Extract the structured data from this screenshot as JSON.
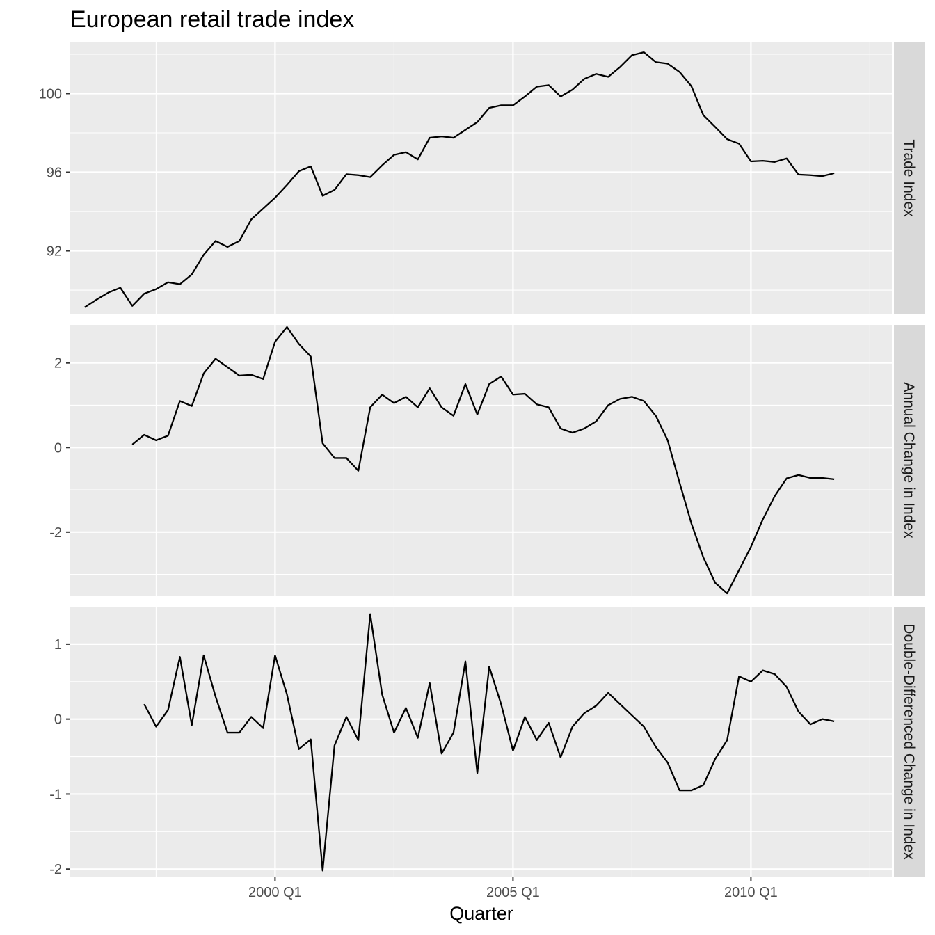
{
  "chart_data": {
    "type": "line",
    "title": "European retail trade index",
    "xlabel": "Quarter",
    "x_ticks": [
      "2000 Q1",
      "2005 Q1",
      "2010 Q1"
    ],
    "x_start": "1996 Q1",
    "grid": true,
    "facets": [
      {
        "name": "Trade Index",
        "ylim": [
          88.8,
          102.6
        ],
        "y_ticks": [
          {
            "value": 92,
            "label": "92"
          },
          {
            "value": 96,
            "label": "96"
          },
          {
            "value": 100,
            "label": "100"
          }
        ],
        "first_quarter": "1996 Q1",
        "values": [
          89.13,
          89.52,
          89.88,
          90.12,
          89.2,
          89.82,
          90.05,
          90.4,
          90.3,
          90.8,
          91.8,
          92.5,
          92.2,
          92.5,
          93.6,
          94.15,
          94.7,
          95.35,
          96.05,
          96.3,
          94.8,
          95.1,
          95.9,
          95.85,
          95.75,
          96.35,
          96.88,
          97.02,
          96.65,
          97.75,
          97.82,
          97.75,
          98.15,
          98.55,
          99.27,
          99.4,
          99.4,
          99.85,
          100.35,
          100.43,
          99.85,
          100.2,
          100.75,
          101.0,
          100.85,
          101.35,
          101.95,
          102.1,
          101.6,
          101.52,
          101.1,
          100.37,
          98.9,
          98.3,
          97.68,
          97.45,
          96.55,
          96.58,
          96.52,
          96.7,
          95.88,
          95.85,
          95.8,
          95.95
        ]
      },
      {
        "name": "Annual Change in Index",
        "ylim": [
          -3.5,
          2.9
        ],
        "y_ticks": [
          {
            "value": -2,
            "label": "-2"
          },
          {
            "value": 0,
            "label": "0"
          },
          {
            "value": 2,
            "label": "2"
          }
        ],
        "first_quarter": "1997 Q1",
        "values": [
          0.07,
          0.3,
          0.17,
          0.28,
          1.1,
          0.98,
          1.75,
          2.1,
          1.9,
          1.7,
          1.72,
          1.62,
          2.5,
          2.85,
          2.45,
          2.15,
          0.1,
          -0.25,
          -0.25,
          -0.55,
          0.95,
          1.25,
          1.05,
          1.2,
          0.95,
          1.4,
          0.95,
          0.75,
          1.5,
          0.78,
          1.5,
          1.68,
          1.25,
          1.27,
          1.02,
          0.95,
          0.45,
          0.35,
          0.45,
          0.62,
          1.0,
          1.15,
          1.2,
          1.1,
          0.75,
          0.17,
          -0.83,
          -1.8,
          -2.6,
          -3.2,
          -3.45,
          -2.9,
          -2.35,
          -1.7,
          -1.15,
          -0.73,
          -0.65,
          -0.72,
          -0.72,
          -0.75
        ]
      },
      {
        "name": "Double-Differenced Change in Index",
        "ylim": [
          -2.1,
          1.5
        ],
        "y_ticks": [
          {
            "value": -2,
            "label": "-2"
          },
          {
            "value": -1,
            "label": "-1"
          },
          {
            "value": 0,
            "label": "0"
          },
          {
            "value": 1,
            "label": "1"
          }
        ],
        "first_quarter": "1997 Q2",
        "values": [
          0.2,
          -0.1,
          0.12,
          0.83,
          -0.08,
          0.85,
          0.3,
          -0.18,
          -0.18,
          0.03,
          -0.12,
          0.85,
          0.33,
          -0.4,
          -0.27,
          -2.02,
          -0.35,
          0.03,
          -0.28,
          1.4,
          0.33,
          -0.18,
          0.15,
          -0.25,
          0.48,
          -0.46,
          -0.18,
          0.77,
          -0.72,
          0.7,
          0.2,
          -0.42,
          0.03,
          -0.28,
          -0.05,
          -0.51,
          -0.1,
          0.08,
          0.18,
          0.35,
          0.2,
          0.05,
          -0.1,
          -0.37,
          -0.58,
          -0.95,
          -0.95,
          -0.88,
          -0.53,
          -0.28,
          0.57,
          0.5,
          0.65,
          0.6,
          0.43,
          0.1,
          -0.07,
          0.0,
          -0.03
        ]
      }
    ]
  }
}
